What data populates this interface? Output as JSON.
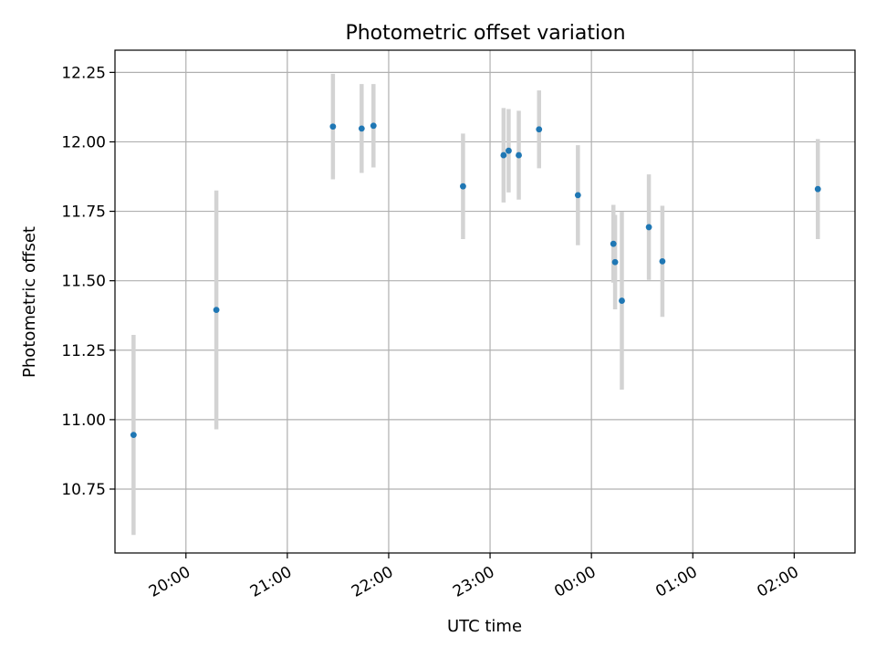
{
  "chart_data": {
    "type": "scatter",
    "title": "Photometric offset variation",
    "xlabel": "UTC time",
    "ylabel": "Photometric offset",
    "x_ticks": [
      "20:00",
      "21:00",
      "22:00",
      "23:00",
      "00:00",
      "01:00",
      "02:00"
    ],
    "y_ticks": [
      "10.75",
      "11.00",
      "11.25",
      "11.50",
      "11.75",
      "12.00",
      "12.25"
    ],
    "xlim": [
      "19:34",
      "02:34"
    ],
    "ylim": [
      10.52,
      12.33
    ],
    "grid": true,
    "colors": {
      "point": "#1f77b4",
      "errorbar": "#d3d3d3"
    },
    "points": [
      {
        "t": "19:29",
        "y": 10.945,
        "err": 0.36
      },
      {
        "t": "20:18",
        "y": 11.395,
        "err": 0.43
      },
      {
        "t": "21:27",
        "y": 12.055,
        "err": 0.19
      },
      {
        "t": "21:44",
        "y": 12.048,
        "err": 0.16
      },
      {
        "t": "21:51",
        "y": 12.058,
        "err": 0.15
      },
      {
        "t": "22:44",
        "y": 11.84,
        "err": 0.19
      },
      {
        "t": "23:08",
        "y": 11.952,
        "err": 0.17
      },
      {
        "t": "23:11",
        "y": 11.968,
        "err": 0.15
      },
      {
        "t": "23:17",
        "y": 11.952,
        "err": 0.16
      },
      {
        "t": "23:29",
        "y": 12.045,
        "err": 0.14
      },
      {
        "t": "23:52",
        "y": 11.808,
        "err": 0.18
      },
      {
        "t": "00:13",
        "y": 11.633,
        "err": 0.14
      },
      {
        "t": "00:14",
        "y": 11.567,
        "err": 0.17
      },
      {
        "t": "00:18",
        "y": 11.428,
        "err": 0.32
      },
      {
        "t": "00:34",
        "y": 11.693,
        "err": 0.19
      },
      {
        "t": "00:42",
        "y": 11.57,
        "err": 0.2
      },
      {
        "t": "02:14",
        "y": 11.83,
        "err": 0.18
      }
    ]
  }
}
